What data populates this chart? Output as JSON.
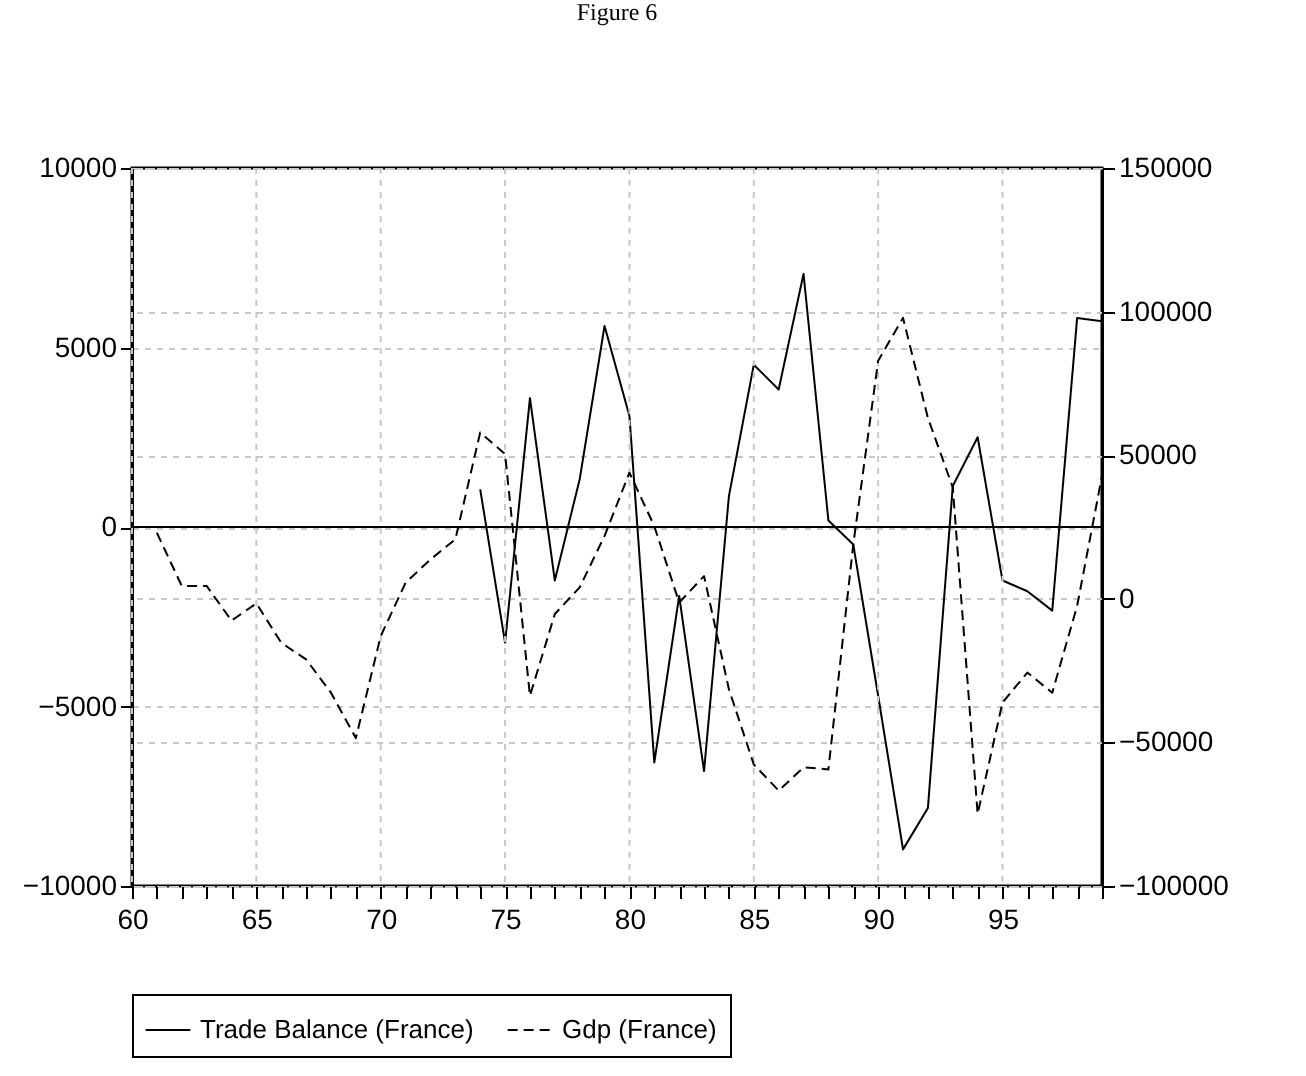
{
  "chart_data": {
    "type": "line",
    "title": "Figure 6",
    "x": [
      61,
      62,
      63,
      64,
      65,
      66,
      67,
      68,
      69,
      70,
      71,
      72,
      73,
      74,
      75,
      76,
      77,
      78,
      79,
      80,
      81,
      82,
      83,
      84,
      85,
      86,
      87,
      88,
      89,
      90,
      91,
      92,
      93,
      94,
      95,
      96,
      97,
      98,
      99
    ],
    "series": [
      {
        "name": "Trade Balance (France)",
        "color": "#000000",
        "line_style": "solid",
        "values": [
          null,
          null,
          null,
          null,
          null,
          null,
          null,
          null,
          null,
          null,
          null,
          null,
          null,
          1050,
          -3220,
          3590,
          -1490,
          1330,
          5600,
          3090,
          -6560,
          -1920,
          -6800,
          860,
          4520,
          3830,
          7050,
          180,
          -490,
          -4700,
          -8980,
          -7830,
          1140,
          2500,
          -1490,
          -1790,
          -2330,
          5820,
          5730
        ]
      },
      {
        "name": "Gdp (France)",
        "color": "#000000",
        "line_style": "dashed",
        "axis": "y2",
        "values": [
          23000,
          4500,
          4500,
          -7600,
          -1600,
          -15300,
          -21100,
          -32700,
          -48500,
          -13000,
          5600,
          13700,
          20700,
          57900,
          50400,
          -33800,
          -5300,
          4000,
          21900,
          43900,
          25300,
          -1300,
          7900,
          -31500,
          -57700,
          -66800,
          -58700,
          -59400,
          18900,
          82900,
          97800,
          63000,
          38800,
          -74900,
          -36100,
          -25700,
          -32700,
          -2500,
          42800
        ]
      }
    ],
    "xlim": [
      60,
      99
    ],
    "xticks": [
      60,
      {
        "value": 61,
        "label": null
      },
      {
        "value": 62,
        "label": null
      },
      {
        "value": 63,
        "label": null
      },
      {
        "value": 64,
        "label": null
      },
      65,
      {
        "value": 66,
        "label": null
      },
      {
        "value": 67,
        "label": null
      },
      {
        "value": 68,
        "label": null
      },
      {
        "value": 69,
        "label": null
      },
      70,
      {
        "value": 71,
        "label": null
      },
      {
        "value": 72,
        "label": null
      },
      {
        "value": 73,
        "label": null
      },
      {
        "value": 74,
        "label": null
      },
      75,
      {
        "value": 76,
        "label": null
      },
      {
        "value": 77,
        "label": null
      },
      {
        "value": 78,
        "label": null
      },
      {
        "value": 79,
        "label": null
      },
      80,
      {
        "value": 81,
        "label": null
      },
      {
        "value": 82,
        "label": null
      },
      {
        "value": 83,
        "label": null
      },
      {
        "value": 84,
        "label": null
      },
      85,
      {
        "value": 86,
        "label": null
      },
      {
        "value": 87,
        "label": null
      },
      {
        "value": 88,
        "label": null
      },
      {
        "value": 89,
        "label": null
      },
      90,
      {
        "value": 91,
        "label": null
      },
      {
        "value": 92,
        "label": null
      },
      {
        "value": 93,
        "label": null
      },
      {
        "value": 94,
        "label": null
      },
      95,
      {
        "value": 96,
        "label": null
      },
      {
        "value": 97,
        "label": null
      },
      {
        "value": 98,
        "label": null
      },
      {
        "value": 99,
        "label": null
      }
    ],
    "ylim": [
      -10000,
      10000
    ],
    "yticks": [
      -10000,
      -5000,
      0,
      5000,
      10000
    ],
    "y2lim": [
      -100000,
      150000
    ],
    "y2ticks": [
      -100000,
      -50000,
      0,
      50000,
      100000,
      150000
    ],
    "ref_lines": [
      {
        "axis": "y",
        "value": 0,
        "color": "#000000"
      }
    ],
    "grid": true,
    "legend": "bottom",
    "marker": "none"
  }
}
